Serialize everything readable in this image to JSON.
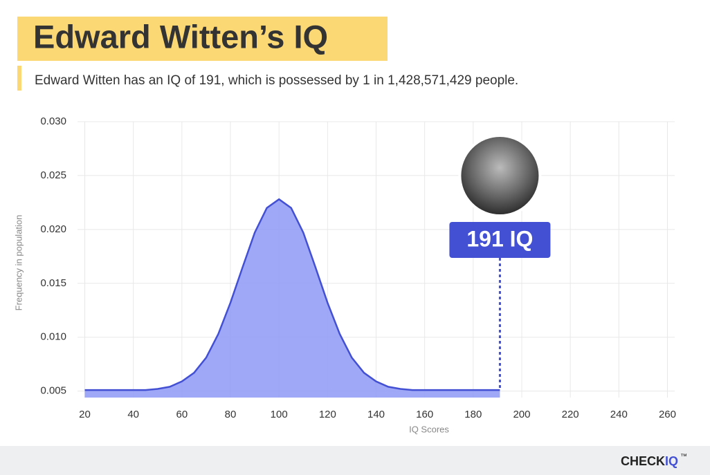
{
  "chart_data": {
    "type": "area",
    "title": "Edward Witten’s IQ",
    "subtitle": "Edward Witten has an IQ of 191, which is possessed by 1 in 1,428,571,429 people.",
    "x_label": "IQ Scores",
    "y_label": "Frequency in population",
    "x": [
      20,
      25,
      30,
      35,
      40,
      45,
      50,
      55,
      60,
      65,
      70,
      75,
      80,
      85,
      90,
      95,
      100,
      105,
      110,
      115,
      120,
      125,
      130,
      135,
      140,
      145,
      150,
      155,
      160,
      165,
      170,
      175,
      180,
      185,
      190,
      191
    ],
    "values": [
      0.0051,
      0.0051,
      0.0051,
      0.0051,
      0.0051,
      0.0051,
      0.0052,
      0.0054,
      0.0059,
      0.0067,
      0.0081,
      0.0103,
      0.0132,
      0.0165,
      0.0197,
      0.022,
      0.0228,
      0.022,
      0.0197,
      0.0165,
      0.0132,
      0.0103,
      0.0081,
      0.0067,
      0.0059,
      0.0054,
      0.0052,
      0.0051,
      0.0051,
      0.0051,
      0.0051,
      0.0051,
      0.0051,
      0.0051,
      0.0051,
      0.0051
    ],
    "color": "#4350d3",
    "fill": "#8d99f4",
    "xlim": [
      17,
      263
    ],
    "ylim": [
      0.0044,
      0.03
    ],
    "xticks": [
      20,
      40,
      60,
      80,
      100,
      120,
      140,
      160,
      180,
      200,
      220,
      240,
      260
    ],
    "yticks": [
      {
        "value": 0.03,
        "label": "0.030"
      },
      0.025,
      {
        "value": 0.02,
        "label": "0.020"
      },
      0.015,
      {
        "value": 0.01,
        "label": "0.010"
      },
      0.005
    ],
    "grid": true,
    "annotation": {
      "x": 191,
      "label": "191 IQ"
    }
  },
  "brand": {
    "main": "CHECK",
    "accent": "IQ",
    "mark": "™"
  }
}
